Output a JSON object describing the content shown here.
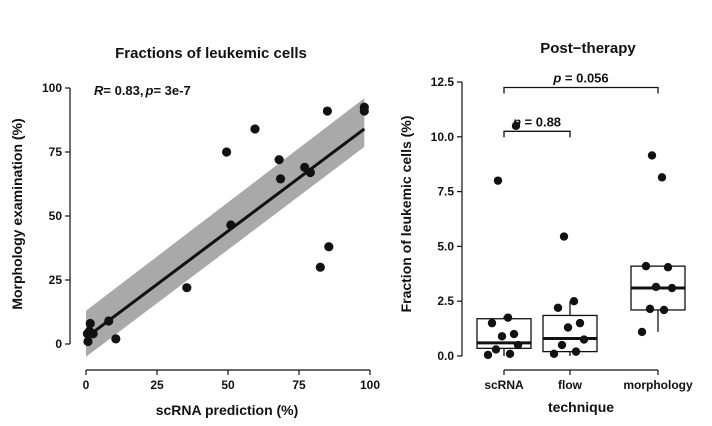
{
  "chart_data": [
    {
      "type": "scatter",
      "title": "Fractions of leukemic cells",
      "xlabel": "scRNA prediction (%)",
      "ylabel": "Morphology examination (%)",
      "annotation": "R = 0.83, p = 3e-7",
      "annotation_parts": {
        "r_label": "R",
        "r_value": "= 0.83,",
        "p_label": "p",
        "p_value": "= 3e-7"
      },
      "xlim": [
        0,
        100
      ],
      "ylim": [
        0,
        100
      ],
      "xticks": [
        "0",
        "25",
        "50",
        "75",
        "100"
      ],
      "yticks": [
        "0",
        "25",
        "50",
        "75",
        "100"
      ],
      "points": [
        {
          "x": 0.5,
          "y": 4
        },
        {
          "x": 0.7,
          "y": 1
        },
        {
          "x": 1.2,
          "y": 5
        },
        {
          "x": 1.5,
          "y": 8
        },
        {
          "x": 2.5,
          "y": 4
        },
        {
          "x": 8,
          "y": 9
        },
        {
          "x": 10.5,
          "y": 2
        },
        {
          "x": 35.5,
          "y": 22
        },
        {
          "x": 49.5,
          "y": 75
        },
        {
          "x": 51,
          "y": 46.5
        },
        {
          "x": 59.5,
          "y": 84
        },
        {
          "x": 68,
          "y": 72
        },
        {
          "x": 68.5,
          "y": 64.5
        },
        {
          "x": 77,
          "y": 69
        },
        {
          "x": 79,
          "y": 67
        },
        {
          "x": 82.5,
          "y": 30
        },
        {
          "x": 85,
          "y": 91
        },
        {
          "x": 85.5,
          "y": 38
        },
        {
          "x": 98,
          "y": 91
        },
        {
          "x": 98,
          "y": 92.5
        }
      ],
      "fit": {
        "x": [
          0,
          98
        ],
        "y": [
          2.5,
          84
        ]
      },
      "band": {
        "x": [
          0,
          98
        ],
        "lower": [
          -5,
          77
        ],
        "upper": [
          13,
          96
        ]
      },
      "colors": {
        "points": "#111111",
        "line": "#111111",
        "band": "#a9a9a9"
      }
    },
    {
      "type": "box",
      "title": "Post−therapy",
      "xlabel": "technique",
      "ylabel": "Fraction of leukemic cells (%)",
      "ylim": [
        0,
        12.5
      ],
      "yticks": [
        "0.0",
        "2.5",
        "5.0",
        "7.5",
        "10.0",
        "12.5"
      ],
      "categories": [
        "scRNA",
        "flow",
        "morphology"
      ],
      "boxes": [
        {
          "name": "scRNA",
          "whisker_low": 0,
          "q1": 0.35,
          "median": 0.6,
          "q3": 1.7,
          "whisker_high": 1.8,
          "points": [
            0.05,
            0.1,
            0.3,
            0.5,
            0.9,
            1.0,
            1.5,
            1.75,
            8.0,
            10.5
          ]
        },
        {
          "name": "flow",
          "whisker_low": 0,
          "q1": 0.2,
          "median": 0.8,
          "q3": 1.85,
          "whisker_high": 2.5,
          "points": [
            0.1,
            0.2,
            0.5,
            0.75,
            1.3,
            1.5,
            2.2,
            2.5,
            5.45
          ]
        },
        {
          "name": "morphology",
          "whisker_low": 1.1,
          "q1": 2.1,
          "median": 3.1,
          "q3": 4.1,
          "whisker_high": 4.1,
          "points": [
            1.1,
            2.1,
            2.15,
            3.1,
            3.15,
            4.05,
            4.1,
            8.15,
            9.15
          ]
        }
      ],
      "comparisons": [
        {
          "groups": [
            "scRNA",
            "flow"
          ],
          "label": "p = 0.88",
          "p_label": "p",
          "p_value": "= 0.88"
        },
        {
          "groups": [
            "scRNA",
            "morphology"
          ],
          "label": "p = 0.056",
          "p_label": "p",
          "p_value": "= 0.056"
        }
      ],
      "colors": {
        "box": "#111111",
        "points": "#111111"
      }
    }
  ]
}
